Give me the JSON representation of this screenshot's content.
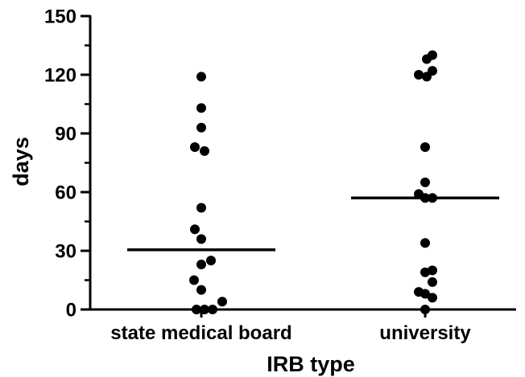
{
  "chart_data": {
    "type": "scatter",
    "xlabel": "IRB type",
    "ylabel": "days",
    "ylim": [
      0,
      150
    ],
    "yticks": [
      0,
      30,
      60,
      90,
      120,
      150
    ],
    "categories": [
      "state medical board",
      "university"
    ],
    "series": [
      {
        "category": "state medical board",
        "points": [
          {
            "offset": 0,
            "y": 119
          },
          {
            "offset": 0,
            "y": 103
          },
          {
            "offset": 0,
            "y": 93
          },
          {
            "offset": -0.08,
            "y": 83
          },
          {
            "offset": 0.04,
            "y": 81
          },
          {
            "offset": 0,
            "y": 52
          },
          {
            "offset": -0.08,
            "y": 41
          },
          {
            "offset": 0,
            "y": 36
          },
          {
            "offset": 0.12,
            "y": 25
          },
          {
            "offset": 0,
            "y": 23
          },
          {
            "offset": -0.09,
            "y": 15
          },
          {
            "offset": 0,
            "y": 10
          },
          {
            "offset": 0.26,
            "y": 4
          },
          {
            "offset": -0.06,
            "y": 0
          },
          {
            "offset": 0.04,
            "y": 0
          },
          {
            "offset": 0.14,
            "y": 0
          }
        ],
        "median": 30.5
      },
      {
        "category": "university",
        "points": [
          {
            "offset": 0.09,
            "y": 130
          },
          {
            "offset": 0.02,
            "y": 128
          },
          {
            "offset": 0.09,
            "y": 122
          },
          {
            "offset": -0.08,
            "y": 120
          },
          {
            "offset": 0.02,
            "y": 119
          },
          {
            "offset": 0,
            "y": 83
          },
          {
            "offset": 0,
            "y": 65
          },
          {
            "offset": -0.08,
            "y": 59
          },
          {
            "offset": 0,
            "y": 57
          },
          {
            "offset": 0.09,
            "y": 57
          },
          {
            "offset": 0,
            "y": 34
          },
          {
            "offset": 0.09,
            "y": 20
          },
          {
            "offset": 0,
            "y": 19
          },
          {
            "offset": 0.09,
            "y": 14
          },
          {
            "offset": -0.08,
            "y": 9
          },
          {
            "offset": 0,
            "y": 8
          },
          {
            "offset": 0.09,
            "y": 6
          },
          {
            "offset": 0,
            "y": 0
          }
        ],
        "median": 57
      }
    ],
    "grid": false,
    "legend": "none",
    "colors": {
      "points": "#000000",
      "axis": "#000000",
      "median": "#000000"
    }
  }
}
